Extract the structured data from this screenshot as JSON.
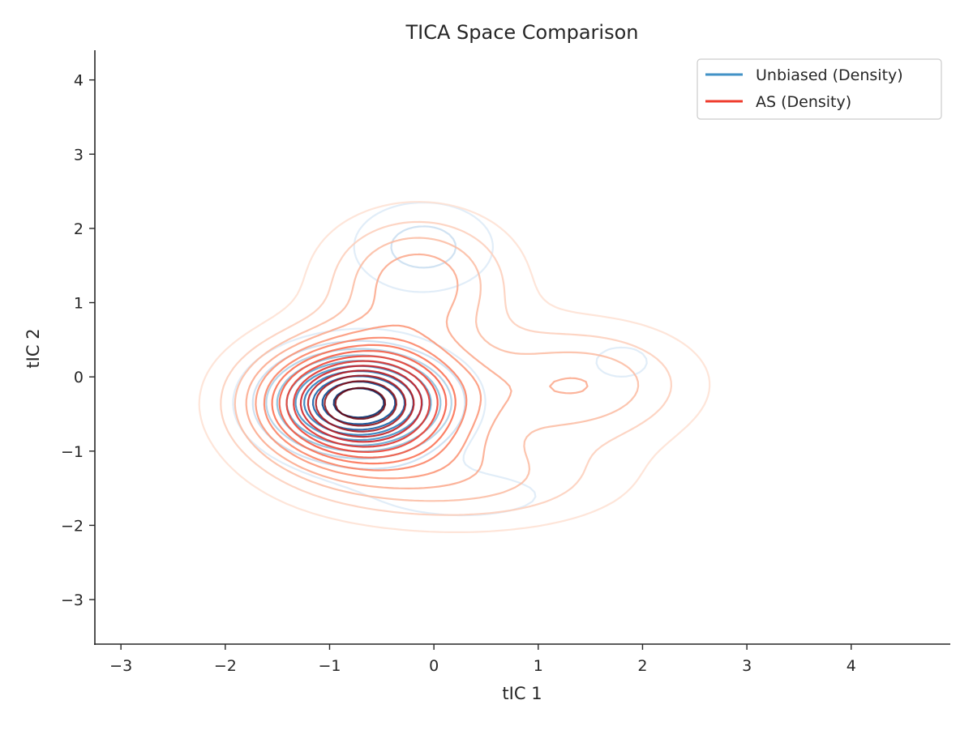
{
  "chart_data": {
    "type": "contour",
    "title": "TICA Space Comparison",
    "xlabel": "tIC 1",
    "ylabel": "tIC 2",
    "xlim": [
      -3.25,
      4.95
    ],
    "ylim": [
      -3.6,
      4.4
    ],
    "xticks": [
      -3,
      -2,
      -1,
      0,
      1,
      2,
      3,
      4
    ],
    "yticks": [
      -3,
      -2,
      -1,
      0,
      1,
      2,
      3,
      4
    ],
    "xtick_labels": [
      "−3",
      "−2",
      "−1",
      "0",
      "1",
      "2",
      "3",
      "4"
    ],
    "ytick_labels": [
      "−3",
      "−2",
      "−1",
      "0",
      "1",
      "2",
      "3",
      "4"
    ],
    "grid": false,
    "legend_position": "top-right",
    "legend": [
      {
        "label": "Unbiased (Density)",
        "color": "#4292c6"
      },
      {
        "label": "AS (Density)",
        "color": "#ef3b2c"
      }
    ],
    "series": [
      {
        "name": "Unbiased (Density)",
        "colormap": "Blues",
        "levels": 10,
        "components": [
          {
            "x": -0.72,
            "y": -0.35,
            "sx": 0.55,
            "sy": 0.45,
            "w": 1.0
          },
          {
            "x": -0.1,
            "y": 1.75,
            "sx": 0.5,
            "sy": 0.45,
            "w": 0.22
          },
          {
            "x": 1.8,
            "y": 0.2,
            "sx": 0.55,
            "sy": 0.45,
            "w": 0.1
          },
          {
            "x": 0.3,
            "y": -1.6,
            "sx": 0.9,
            "sy": 0.35,
            "w": 0.12
          }
        ]
      },
      {
        "name": "AS (Density)",
        "colormap": "Reds",
        "levels": 15,
        "components": [
          {
            "x": -0.72,
            "y": -0.35,
            "sx": 0.65,
            "sy": 0.55,
            "w": 1.0
          },
          {
            "x": -0.15,
            "y": 1.3,
            "sx": 0.6,
            "sy": 0.6,
            "w": 0.3
          },
          {
            "x": 1.4,
            "y": -0.1,
            "sx": 0.75,
            "sy": 0.55,
            "w": 0.25
          },
          {
            "x": 0.3,
            "y": -1.4,
            "sx": 1.0,
            "sy": 0.45,
            "w": 0.2
          }
        ]
      }
    ]
  }
}
